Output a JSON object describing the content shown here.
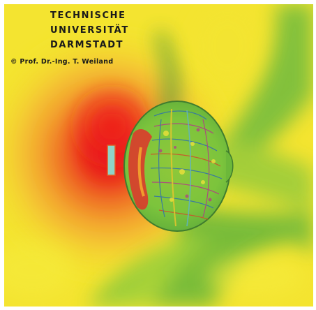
{
  "logo": {
    "line1": "TECHNISCHE",
    "line2": "UNIVERSITÄT",
    "line3": "DARMSTADT",
    "credit": "© Prof. Dr.-Ing. T. Weiland"
  },
  "colors": {
    "background_field": "#f2e62a",
    "hot_red": "#e8221e",
    "warm_orange": "#f08a2a",
    "low_green": "#6cbf3a",
    "source_cyan": "#8fd3c8"
  },
  "icons": {
    "logo": "university-seal-icon",
    "antenna": "antenna-source-icon",
    "head": "head-model-icon"
  }
}
